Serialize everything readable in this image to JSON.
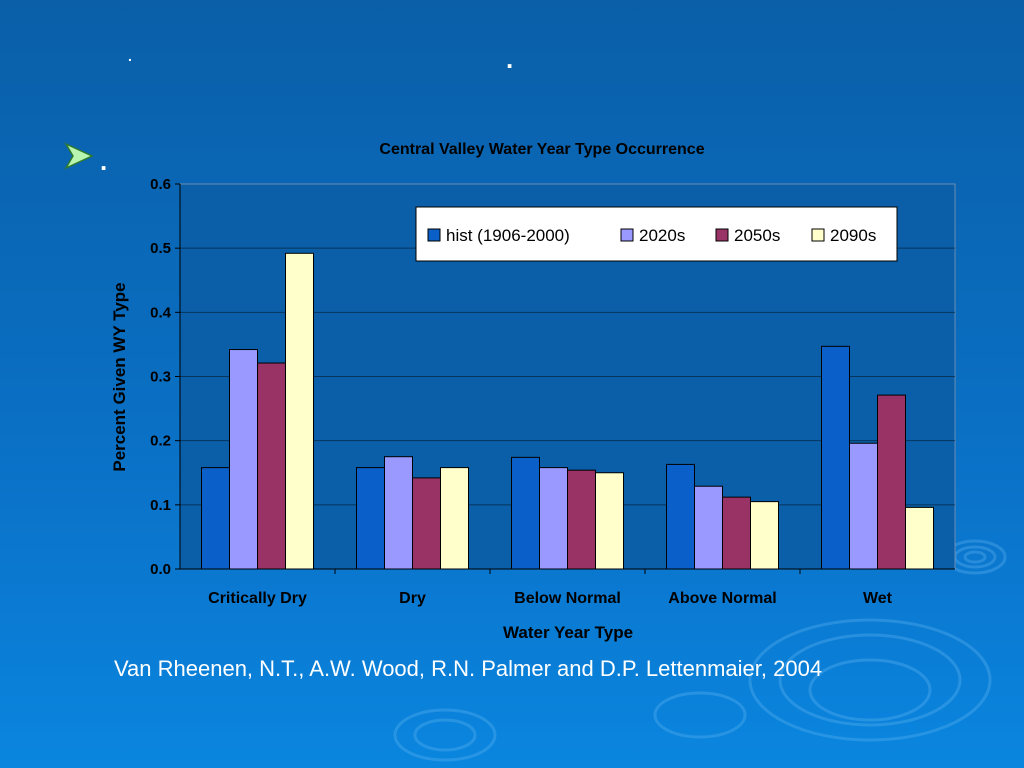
{
  "slide": {
    "title_marks": [
      ".",
      "."
    ],
    "bullet_text": ".",
    "citation": "Van Rheenen, N.T., A.W. Wood, R.N. Palmer and D.P. Lettenmaier, 2004"
  },
  "chart_data": {
    "type": "bar",
    "title": "Central Valley Water Year Type Occurrence",
    "xlabel": "Water Year Type",
    "ylabel": "Percent Given WY Type",
    "ylim": [
      0,
      0.6
    ],
    "yticks": [
      "0.0",
      "0.1",
      "0.2",
      "0.3",
      "0.4",
      "0.5",
      "0.6"
    ],
    "grid": true,
    "legend_position": "top-right",
    "categories": [
      "Critically Dry",
      "Dry",
      "Below Normal",
      "Above Normal",
      "Wet"
    ],
    "series": [
      {
        "name": "hist (1906-2000)",
        "color": "#0a5fc8",
        "values": [
          0.158,
          0.158,
          0.174,
          0.163,
          0.347
        ]
      },
      {
        "name": "2020s",
        "color": "#9999ff",
        "values": [
          0.342,
          0.175,
          0.158,
          0.129,
          0.196
        ]
      },
      {
        "name": "2050s",
        "color": "#993366",
        "values": [
          0.321,
          0.142,
          0.154,
          0.112,
          0.271
        ]
      },
      {
        "name": "2090s",
        "color": "#ffffcc",
        "values": [
          0.492,
          0.158,
          0.15,
          0.105,
          0.096
        ]
      }
    ]
  }
}
